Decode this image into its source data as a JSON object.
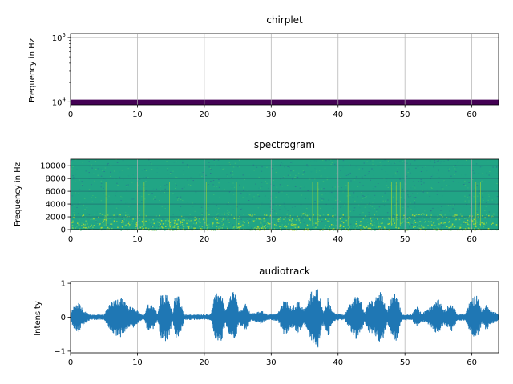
{
  "chart_data": [
    {
      "type": "heatmap",
      "title": "chirplet",
      "ylabel": "Frequency in Hz",
      "xlabel": "",
      "yscale": "log",
      "xlim": [
        0,
        64
      ],
      "ylim": [
        9000,
        115000
      ],
      "xticks": [
        0,
        10,
        20,
        30,
        40,
        50,
        60
      ],
      "xtick_labels": [
        "0",
        "10",
        "20",
        "30",
        "40",
        "50",
        "60"
      ],
      "yticks": [
        10000,
        100000
      ],
      "ytick_labels": [
        "10^4",
        "10^5"
      ],
      "grid": true,
      "colormap": "viridis",
      "band": {
        "y_from": 9000,
        "y_to": 10800,
        "color": "#440154"
      }
    },
    {
      "type": "heatmap",
      "title": "spectrogram",
      "ylabel": "Frequency in Hz",
      "xlabel": "",
      "xlim": [
        0,
        64
      ],
      "ylim": [
        0,
        11025
      ],
      "xticks": [
        0,
        10,
        20,
        30,
        40,
        50,
        60
      ],
      "xtick_labels": [
        "0",
        "10",
        "20",
        "30",
        "40",
        "50",
        "60"
      ],
      "yticks": [
        0,
        2000,
        4000,
        6000,
        8000,
        10000
      ],
      "ytick_labels": [
        "0",
        "2000",
        "4000",
        "6000",
        "8000",
        "10000"
      ],
      "grid": true,
      "colormap": "viridis",
      "background_color": "#21a585",
      "harmonic_lines_hz": [
        2000,
        4000,
        6000,
        8000,
        10000
      ],
      "highlight_color": "#b5de2b"
    },
    {
      "type": "line",
      "title": "audiotrack",
      "ylabel": "Intensity",
      "xlabel": "",
      "xlim": [
        0,
        64
      ],
      "ylim": [
        -1.05,
        1.05
      ],
      "xticks": [
        0,
        10,
        20,
        30,
        40,
        50,
        60
      ],
      "xtick_labels": [
        "0",
        "10",
        "20",
        "30",
        "40",
        "50",
        "60"
      ],
      "yticks": [
        -1,
        0,
        1
      ],
      "ytick_labels": [
        "−1",
        "0",
        "1"
      ],
      "grid": true,
      "line_color": "#1f77b4",
      "envelope": [
        {
          "x": 0,
          "amp": 0.08
        },
        {
          "x": 0.5,
          "amp": 0.35
        },
        {
          "x": 1.2,
          "amp": 0.45
        },
        {
          "x": 2,
          "amp": 0.2
        },
        {
          "x": 3,
          "amp": 0.08
        },
        {
          "x": 5,
          "amp": 0.08
        },
        {
          "x": 6.2,
          "amp": 0.5
        },
        {
          "x": 7.5,
          "amp": 0.6
        },
        {
          "x": 8.5,
          "amp": 0.35
        },
        {
          "x": 9.5,
          "amp": 0.3
        },
        {
          "x": 10.5,
          "amp": 0.1
        },
        {
          "x": 11,
          "amp": 0.06
        },
        {
          "x": 11.5,
          "amp": 0.4
        },
        {
          "x": 12.5,
          "amp": 0.35
        },
        {
          "x": 13,
          "amp": 0.1
        },
        {
          "x": 13.5,
          "amp": 0.65
        },
        {
          "x": 14.5,
          "amp": 0.75
        },
        {
          "x": 15.3,
          "amp": 0.1
        },
        {
          "x": 15.6,
          "amp": 0.7
        },
        {
          "x": 16.3,
          "amp": 0.6
        },
        {
          "x": 17,
          "amp": 0.08
        },
        {
          "x": 20,
          "amp": 0.08
        },
        {
          "x": 21,
          "amp": 0.1
        },
        {
          "x": 21.6,
          "amp": 0.7
        },
        {
          "x": 22.5,
          "amp": 0.75
        },
        {
          "x": 23.2,
          "amp": 0.2
        },
        {
          "x": 23.8,
          "amp": 0.6
        },
        {
          "x": 24.5,
          "amp": 0.8
        },
        {
          "x": 25.2,
          "amp": 0.2
        },
        {
          "x": 26.2,
          "amp": 0.4
        },
        {
          "x": 27,
          "amp": 0.1
        },
        {
          "x": 28.5,
          "amp": 0.2
        },
        {
          "x": 29.5,
          "amp": 0.08
        },
        {
          "x": 31,
          "amp": 0.12
        },
        {
          "x": 32,
          "amp": 0.55
        },
        {
          "x": 33,
          "amp": 0.3
        },
        {
          "x": 34,
          "amp": 0.5
        },
        {
          "x": 35,
          "amp": 0.25
        },
        {
          "x": 36,
          "amp": 0.75
        },
        {
          "x": 37,
          "amp": 0.9
        },
        {
          "x": 37.8,
          "amp": 0.2
        },
        {
          "x": 38.5,
          "amp": 0.6
        },
        {
          "x": 39.3,
          "amp": 0.15
        },
        {
          "x": 40,
          "amp": 0.1
        },
        {
          "x": 41,
          "amp": 0.08
        },
        {
          "x": 41.5,
          "amp": 0.3
        },
        {
          "x": 42.5,
          "amp": 0.65
        },
        {
          "x": 43.3,
          "amp": 0.6
        },
        {
          "x": 44,
          "amp": 0.15
        },
        {
          "x": 44.6,
          "amp": 0.45
        },
        {
          "x": 45.5,
          "amp": 0.55
        },
        {
          "x": 46.5,
          "amp": 0.8
        },
        {
          "x": 47.3,
          "amp": 0.2
        },
        {
          "x": 48,
          "amp": 0.6
        },
        {
          "x": 48.8,
          "amp": 0.75
        },
        {
          "x": 49.5,
          "amp": 0.1
        },
        {
          "x": 51,
          "amp": 0.08
        },
        {
          "x": 51.8,
          "amp": 0.35
        },
        {
          "x": 52.5,
          "amp": 0.1
        },
        {
          "x": 53.8,
          "amp": 0.3
        },
        {
          "x": 55,
          "amp": 0.55
        },
        {
          "x": 55.8,
          "amp": 0.2
        },
        {
          "x": 57,
          "amp": 0.45
        },
        {
          "x": 57.8,
          "amp": 0.1
        },
        {
          "x": 59,
          "amp": 0.1
        },
        {
          "x": 60,
          "amp": 0.6
        },
        {
          "x": 60.8,
          "amp": 0.65
        },
        {
          "x": 61.5,
          "amp": 0.2
        },
        {
          "x": 62.2,
          "amp": 0.4
        },
        {
          "x": 63,
          "amp": 0.2
        },
        {
          "x": 64,
          "amp": 0.1
        }
      ]
    }
  ]
}
